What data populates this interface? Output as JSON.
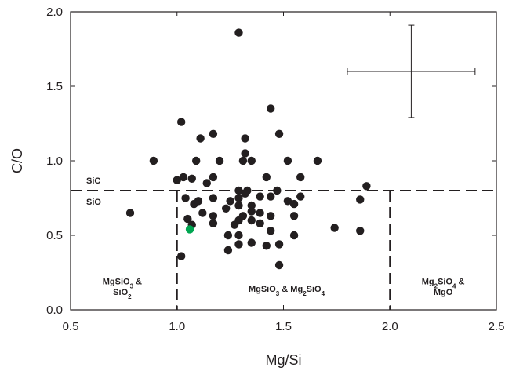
{
  "chart_data": {
    "type": "scatter",
    "title": "",
    "xlabel": "Mg/Si",
    "ylabel": "C/O",
    "xlim": [
      0.5,
      2.5
    ],
    "ylim": [
      0.0,
      2.0
    ],
    "xticks": [
      "0.5",
      "1.0",
      "1.5",
      "2.0",
      "2.5"
    ],
    "yticks": [
      "0.0",
      "0.5",
      "1.0",
      "1.5",
      "2.0"
    ],
    "grid": false,
    "colors": {
      "points": "#231f20",
      "highlight": "#00a651",
      "axes": "#231f20"
    },
    "series": [
      {
        "points": [
          [
            1.29,
            1.86
          ],
          [
            1.44,
            1.35
          ],
          [
            1.02,
            1.26
          ],
          [
            1.17,
            1.18
          ],
          [
            1.48,
            1.18
          ],
          [
            1.11,
            1.15
          ],
          [
            1.32,
            1.15
          ],
          [
            0.89,
            1.0
          ],
          [
            1.09,
            1.0
          ],
          [
            1.2,
            1.0
          ],
          [
            1.31,
            1.0
          ],
          [
            1.35,
            1.0
          ],
          [
            1.52,
            1.0
          ],
          [
            1.66,
            1.0
          ],
          [
            1.32,
            1.05
          ],
          [
            1.0,
            0.87
          ],
          [
            1.07,
            0.88
          ],
          [
            1.14,
            0.85
          ],
          [
            1.17,
            0.89
          ],
          [
            1.42,
            0.89
          ],
          [
            1.58,
            0.89
          ],
          [
            1.03,
            0.89
          ],
          [
            1.29,
            0.8
          ],
          [
            1.33,
            0.8
          ],
          [
            1.47,
            0.8
          ],
          [
            1.89,
            0.83
          ],
          [
            1.04,
            0.75
          ],
          [
            1.08,
            0.71
          ],
          [
            1.1,
            0.73
          ],
          [
            1.17,
            0.75
          ],
          [
            1.25,
            0.73
          ],
          [
            1.29,
            0.75
          ],
          [
            1.32,
            0.78
          ],
          [
            1.35,
            0.7
          ],
          [
            1.39,
            0.76
          ],
          [
            1.44,
            0.76
          ],
          [
            1.52,
            0.73
          ],
          [
            1.55,
            0.71
          ],
          [
            1.58,
            0.76
          ],
          [
            1.86,
            0.74
          ],
          [
            0.78,
            0.65
          ],
          [
            1.12,
            0.65
          ],
          [
            1.17,
            0.63
          ],
          [
            1.23,
            0.68
          ],
          [
            1.29,
            0.7
          ],
          [
            1.31,
            0.63
          ],
          [
            1.35,
            0.66
          ],
          [
            1.39,
            0.65
          ],
          [
            1.44,
            0.63
          ],
          [
            1.55,
            0.63
          ],
          [
            1.05,
            0.61
          ],
          [
            1.07,
            0.57
          ],
          [
            1.17,
            0.58
          ],
          [
            1.27,
            0.57
          ],
          [
            1.29,
            0.6
          ],
          [
            1.35,
            0.6
          ],
          [
            1.39,
            0.58
          ],
          [
            1.24,
            0.5
          ],
          [
            1.29,
            0.5
          ],
          [
            1.44,
            0.53
          ],
          [
            1.55,
            0.5
          ],
          [
            1.74,
            0.55
          ],
          [
            1.86,
            0.53
          ],
          [
            1.29,
            0.44
          ],
          [
            1.35,
            0.45
          ],
          [
            1.42,
            0.43
          ],
          [
            1.48,
            0.44
          ],
          [
            1.24,
            0.4
          ],
          [
            1.02,
            0.36
          ],
          [
            1.48,
            0.3
          ]
        ]
      },
      {
        "highlight": true,
        "points": [
          [
            1.06,
            0.54
          ]
        ]
      }
    ],
    "error_bar": {
      "x": 2.1,
      "y": 1.6,
      "x_err": 0.3,
      "y_err": 0.31
    },
    "threshold_lines": {
      "co": 0.8,
      "mgsi_low": 1.0,
      "mgsi_high": 2.0
    },
    "labels": {
      "above_line": "SiC",
      "below_line": "SiO",
      "region_left_line1": [
        "MgSiO",
        "3",
        " &"
      ],
      "region_left_line2": [
        "SiO",
        "2",
        ""
      ],
      "region_middle": [
        "MgSiO",
        "3",
        " & Mg",
        "2",
        "SiO",
        "4",
        ""
      ],
      "region_right_line1": [
        "Mg",
        "2",
        "SiO",
        "4",
        " &"
      ],
      "region_right_line2": [
        "MgO"
      ]
    }
  }
}
